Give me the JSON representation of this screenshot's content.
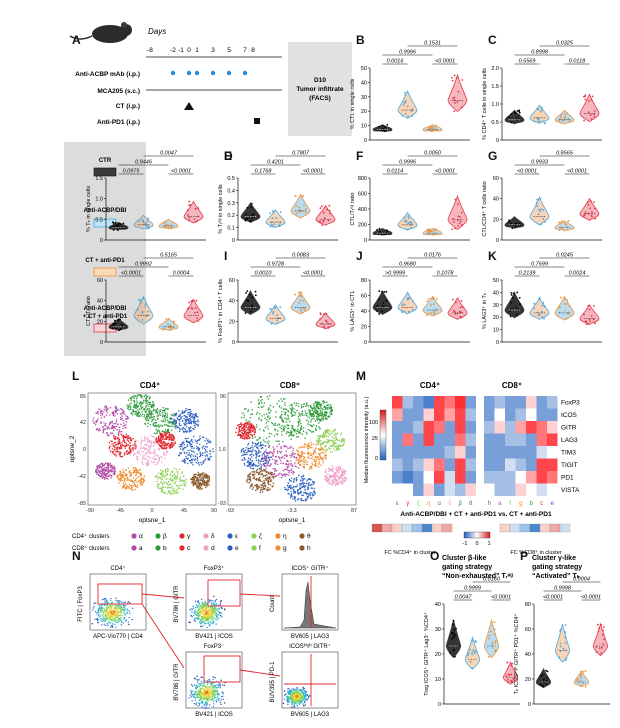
{
  "panel_letters": [
    "A",
    "B",
    "C",
    "D",
    "E",
    "F",
    "G",
    "H",
    "I",
    "J",
    "K",
    "L",
    "M",
    "N",
    "O",
    "P"
  ],
  "timeline": {
    "days_label": "Days",
    "days": [
      "-8",
      "-2",
      "-1",
      "0",
      "1",
      "3",
      "5",
      "7",
      "8"
    ],
    "rows": [
      "Anti-ACBP mAb (i.p.)",
      "MCA205 (s.c.)",
      "CT (i.p.)",
      "Anti-PD1 (i.p.)"
    ],
    "box_lines": [
      "D10",
      "Tumor infiltrate",
      "(FACS)"
    ]
  },
  "legend": {
    "groups": [
      "CTR",
      "Anti-ACBP/DBI",
      "CT + anti-PD1",
      "Anti-ACBP/DBI",
      "+ CT + anti-PD1"
    ],
    "colors": [
      "#3a3a3a",
      "#4aa8e0",
      "#f0923a",
      "#e23a4a"
    ]
  },
  "panels": [
    {
      "id": "B",
      "ylabel": "% CTL in single cells",
      "ticks": [
        "0",
        "10",
        "20",
        "30",
        "40",
        "50"
      ],
      "p1": "0.0016",
      "p2": "<0.0001",
      "p3": "0.9996",
      "p4": "0.1531",
      "medians": [
        0.1,
        0.4,
        0.1,
        0.55
      ],
      "spreads": [
        0.15,
        0.6,
        0.1,
        0.8
      ]
    },
    {
      "id": "C",
      "ylabel": "% CD4⁺ T cells in single cells",
      "ticks": [
        "0",
        "0.5",
        "1.0",
        "1.5",
        "2.0"
      ],
      "p1": "0.5569",
      "p2": "0.0118",
      "p3": "0.8998",
      "p4": "0.0325",
      "medians": [
        0.25,
        0.28,
        0.25,
        0.35
      ],
      "spreads": [
        0.3,
        0.4,
        0.3,
        0.6
      ]
    },
    {
      "id": "D",
      "ylabel": "% Tₕ in single cells",
      "ticks": [
        "0",
        "0.5",
        "1.0",
        "1.5"
      ],
      "p1": "0.0975",
      "p2": "<0.0001",
      "p3": "0.9446",
      "p4": "0.0047",
      "medians": [
        0.15,
        0.2,
        0.18,
        0.35
      ],
      "spreads": [
        0.2,
        0.35,
        0.25,
        0.55
      ]
    },
    {
      "id": "E",
      "ylabel": "% Tᵣᵉᵍ in single cells",
      "ticks": [
        "0",
        "0.1",
        "0.2",
        "0.3",
        "0.4",
        "0.5"
      ],
      "p1": "0.1768",
      "p2": "<0.0001",
      "p3": "0.4201",
      "p4": "0.7807",
      "medians": [
        0.35,
        0.25,
        0.45,
        0.3
      ],
      "spreads": [
        0.5,
        0.45,
        0.6,
        0.5
      ]
    },
    {
      "id": "F",
      "ylabel": "CTL/Tᵣᵉᵍ ratio",
      "ticks": [
        "0",
        "200",
        "400",
        "600",
        "800"
      ],
      "p1": "0.0114",
      "p2": "<0.0001",
      "p3": "0.9996",
      "p4": "0.0050",
      "medians": [
        0.05,
        0.2,
        0.05,
        0.3
      ],
      "spreads": [
        0.1,
        0.45,
        0.1,
        0.85
      ]
    },
    {
      "id": "G",
      "ylabel": "CTL/CD4⁺ T cells ratio",
      "ticks": [
        "0",
        "20",
        "40",
        "60"
      ],
      "p1": "<0.0001",
      "p2": "<0.0001",
      "p3": "0.9933",
      "p4": "0.8565",
      "medians": [
        0.2,
        0.35,
        0.15,
        0.4
      ],
      "spreads": [
        0.3,
        0.7,
        0.25,
        0.55
      ]
    },
    {
      "id": "H",
      "ylabel": "CTL/Tₕ ratio",
      "ticks": [
        "0",
        "20",
        "40",
        "60"
      ],
      "p1": "<0.0001",
      "p2": "0.0004",
      "p3": "0.9992",
      "p4": "0.5165",
      "medians": [
        0.2,
        0.4,
        0.2,
        0.4
      ],
      "spreads": [
        0.3,
        0.7,
        0.3,
        0.6
      ]
    },
    {
      "id": "I",
      "ylabel": "% FoxP3⁺ in CD4⁺ T cells",
      "ticks": [
        "0",
        "20",
        "40",
        "60"
      ],
      "p1": "0.0010",
      "p2": "<0.0001",
      "p3": "0.9728",
      "p4": "0.0083",
      "medians": [
        0.55,
        0.35,
        0.55,
        0.25
      ],
      "spreads": [
        0.6,
        0.5,
        0.55,
        0.4
      ]
    },
    {
      "id": "J",
      "ylabel": "% LAG3⁺ in CTL",
      "ticks": [
        "0",
        "20",
        "40",
        "60",
        "80"
      ],
      "p1": ">0.9999",
      "p2": "0.1078",
      "p3": "0.9680",
      "p4": "0.0176",
      "medians": [
        0.55,
        0.55,
        0.5,
        0.45
      ],
      "spreads": [
        0.6,
        0.55,
        0.5,
        0.55
      ]
    },
    {
      "id": "K",
      "ylabel": "% LAG3⁺ in Tₕ",
      "ticks": [
        "0",
        "10",
        "20",
        "30",
        "40",
        "50"
      ],
      "p1": "0.2139",
      "p2": "0.0024",
      "p3": "0.7699",
      "p4": "0.0245",
      "medians": [
        0.5,
        0.45,
        0.45,
        0.35
      ],
      "spreads": [
        0.65,
        0.55,
        0.6,
        0.5
      ]
    },
    {
      "id": "O",
      "ylabel": "Treg ICOS⁺ GITR⁺ Lag3⁻ %CD4⁺",
      "ticks": [
        "0",
        "10",
        "20",
        "30",
        "40"
      ],
      "p1": "0.0047",
      "p2": "<0.0001",
      "p3": "0.9999",
      "p4": "0.0160",
      "medians": [
        0.6,
        0.45,
        0.6,
        0.25
      ],
      "spreads": [
        0.6,
        0.5,
        0.6,
        0.35
      ]
    },
    {
      "id": "P",
      "ylabel": "Tₕ ICOSʰⁱᵍʰ GITR⁺ PD1⁺ %CD4⁺",
      "ticks": [
        "0",
        "20",
        "40",
        "60",
        "80"
      ],
      "p1": "<0.0001",
      "p2": "<0.0001",
      "p3": "0.9998",
      "p4": "0.0004",
      "medians": [
        0.2,
        0.55,
        0.2,
        0.6
      ],
      "spreads": [
        0.3,
        0.6,
        0.25,
        0.5
      ]
    }
  ],
  "tsne": {
    "cd4_title": "CD4⁺",
    "cd8_title": "CD8⁺",
    "xlabel": "optsne_1",
    "ylabel": "optsne_2",
    "cd4_xticks": [
      "-90",
      "-45",
      "0",
      "45",
      "90"
    ],
    "cd4_yticks": [
      "85",
      "42",
      "0",
      "-42",
      "-85"
    ],
    "cd8_xticks": [
      "-93",
      "-3.3",
      "87"
    ],
    "cd8_yticks": [
      "96",
      "1.6",
      "-93"
    ],
    "cd4_clusters_label": "CD4⁺ clusters",
    "cd8_clusters_label": "CD8⁺ clusters",
    "cd4_clusters": [
      "α",
      "β",
      "γ",
      "δ",
      "ε",
      "ζ",
      "η",
      "θ"
    ],
    "cd8_clusters": [
      "a",
      "b",
      "c",
      "d",
      "e",
      "f",
      "g",
      "h"
    ],
    "cluster_colors": [
      "#b34aa8",
      "#2e9b3a",
      "#e0262f",
      "#f0a0c8",
      "#2a5fbf",
      "#8fcf5a",
      "#f08a2a",
      "#8b5a2b"
    ]
  },
  "heatmap": {
    "cd4_title": "CD4⁺",
    "cd8_title": "CD8⁺",
    "markers": [
      "FoxP3",
      "ICOS",
      "GITR",
      "LAG3",
      "TIM3",
      "TIGIT",
      "PD1",
      "VISTA"
    ],
    "scale_label": "Median fluorescence intensity (a.u.)",
    "scale_ticks": [
      "100",
      "25",
      "0"
    ],
    "caption": "Anti-ACBP/DBI + CT + anti-PD1 vs. CT + anti-PD1",
    "fc_cd4": "FC %CD4⁺ in cluster",
    "fc_cd8": "FC %CD8⁺ in cluster",
    "fc_ticks": [
      "-1",
      "0",
      "1"
    ],
    "cd4_cols": [
      "ε",
      "γ",
      "ζ",
      "η",
      "α",
      "δ",
      "β",
      "θ"
    ],
    "cd8_cols": [
      "h",
      "a",
      "f",
      "g",
      "b",
      "c",
      "e"
    ]
  },
  "gating": {
    "cd4": "CD4⁺",
    "foxp3": "FoxP3⁺",
    "foxp3b": "FoxP3⁻",
    "icos": "ICOS⁺ GITR⁺",
    "icoshigh": "ICOSʰⁱᵍʰ GITR⁺",
    "x1": "APC-Vio770 | CD4",
    "y1": "FITC | FoxP3",
    "x2": "BV421 | ICOS",
    "y2": "BV786 | GITR",
    "x3": "BV605 | LAG3",
    "y3": "Count",
    "y4": "BUV395 | PD-1"
  },
  "op_titles": {
    "o1": "Cluster β-like",
    "o2": "gating strategy",
    "o3": "“Non-exhausted” Tᵣᵉᵍ",
    "p1": "Cluster γ-like",
    "p2": "gating strategy",
    "p3": "“Activated” Tₕ"
  }
}
